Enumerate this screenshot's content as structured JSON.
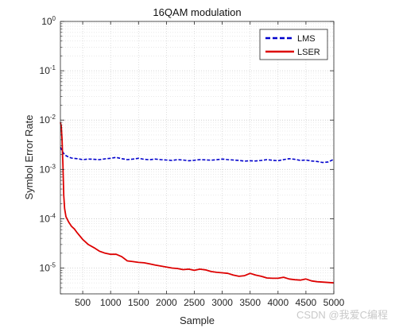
{
  "chart_data": {
    "type": "line",
    "title": "16QAM modulation",
    "xlabel": "Sample",
    "ylabel": "Symbol Error Rate",
    "xlim": [
      100,
      5000
    ],
    "ylim": [
      3e-06,
      1
    ],
    "yscale": "log",
    "grid": true,
    "minor_grid": true,
    "legend": "top-right",
    "x_ticks": [
      500,
      1000,
      1500,
      2000,
      2500,
      3000,
      3500,
      4000,
      4500,
      5000
    ],
    "y_ticks": [
      {
        "value": 1,
        "base": "10",
        "exp": "0"
      },
      {
        "value": 0.1,
        "base": "10",
        "exp": "-1"
      },
      {
        "value": 0.01,
        "base": "10",
        "exp": "-2"
      },
      {
        "value": 0.001,
        "base": "10",
        "exp": "-3"
      },
      {
        "value": 0.0001,
        "base": "10",
        "exp": "-4"
      },
      {
        "value": 1e-05,
        "base": "10",
        "exp": "-5"
      }
    ],
    "series": [
      {
        "name": "LMS",
        "color": "#0000cc",
        "style": "dashed",
        "x": [
          100,
          130,
          160,
          200,
          250,
          300,
          400,
          500,
          600,
          700,
          800,
          900,
          1000,
          1100,
          1200,
          1300,
          1400,
          1500,
          1600,
          1700,
          1800,
          1900,
          2000,
          2100,
          2200,
          2300,
          2400,
          2500,
          2600,
          2700,
          2800,
          2900,
          3000,
          3100,
          3200,
          3300,
          3400,
          3500,
          3600,
          3700,
          3800,
          3900,
          4000,
          4100,
          4200,
          4300,
          4400,
          4500,
          4600,
          4700,
          4800,
          4900,
          5000
        ],
        "y": [
          0.0028,
          0.0024,
          0.0021,
          0.0019,
          0.00178,
          0.0017,
          0.00165,
          0.00158,
          0.00162,
          0.0016,
          0.00158,
          0.00164,
          0.00168,
          0.00175,
          0.00165,
          0.00158,
          0.00162,
          0.00168,
          0.0016,
          0.00157,
          0.00162,
          0.00158,
          0.00155,
          0.00152,
          0.00158,
          0.00155,
          0.0015,
          0.00153,
          0.00158,
          0.00156,
          0.00154,
          0.00157,
          0.00162,
          0.00158,
          0.00155,
          0.00152,
          0.00147,
          0.0015,
          0.00148,
          0.00152,
          0.00158,
          0.00153,
          0.0015,
          0.00158,
          0.00165,
          0.0016,
          0.00152,
          0.00155,
          0.00148,
          0.00145,
          0.00138,
          0.00142,
          0.0016
        ]
      },
      {
        "name": "LSER",
        "color": "#dd0000",
        "style": "solid",
        "x": [
          100,
          115,
          130,
          145,
          160,
          175,
          200,
          250,
          300,
          350,
          400,
          500,
          600,
          700,
          800,
          900,
          1000,
          1100,
          1200,
          1300,
          1400,
          1500,
          1600,
          1700,
          1800,
          1900,
          2000,
          2100,
          2200,
          2300,
          2400,
          2500,
          2600,
          2700,
          2800,
          2900,
          3000,
          3100,
          3200,
          3300,
          3400,
          3500,
          3600,
          3700,
          3800,
          3900,
          4000,
          4100,
          4200,
          4300,
          4400,
          4500,
          4600,
          4700,
          4800,
          4900,
          5000
        ],
        "y": [
          0.009,
          0.0075,
          0.004,
          0.0012,
          0.0003,
          0.00016,
          0.00011,
          8.5e-05,
          7e-05,
          6.2e-05,
          5.2e-05,
          3.8e-05,
          3e-05,
          2.6e-05,
          2.2e-05,
          2e-05,
          1.9e-05,
          1.9e-05,
          1.7e-05,
          1.4e-05,
          1.35e-05,
          1.3e-05,
          1.28e-05,
          1.22e-05,
          1.15e-05,
          1.1e-05,
          1.05e-05,
          1e-05,
          9.8e-06,
          9.3e-06,
          9.5e-06,
          9e-06,
          9.5e-06,
          9.2e-06,
          8.5e-06,
          8.2e-06,
          8e-06,
          7.8e-06,
          7.2e-06,
          6.8e-06,
          7e-06,
          7.8e-06,
          7.2e-06,
          6.8e-06,
          6.3e-06,
          6.2e-06,
          6.2e-06,
          6.5e-06,
          6e-06,
          5.8e-06,
          5.7e-06,
          6e-06,
          5.5e-06,
          5.3e-06,
          5.2e-06,
          5.1e-06,
          5e-06
        ]
      }
    ]
  },
  "watermark": "CSDN @我爱C编程"
}
